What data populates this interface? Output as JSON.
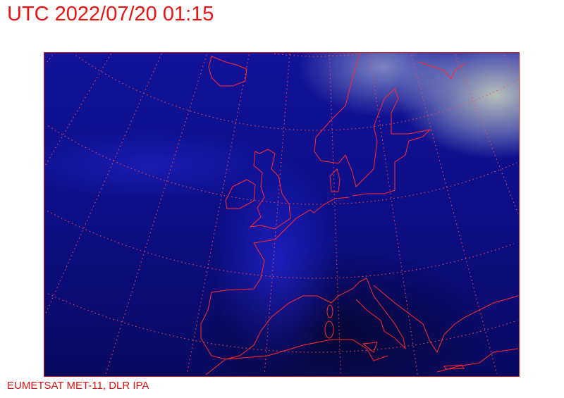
{
  "header": {
    "title": "UTC 2022/07/20 01:15"
  },
  "footer": {
    "credit": "EUMETSAT MET-11, DLR IPA"
  },
  "map": {
    "type": "satellite-image",
    "region": "Europe and North Atlantic",
    "overlays": [
      "coastlines",
      "lat-lon-graticule"
    ],
    "colors": {
      "coastline": "#ff2a2a",
      "graticule": "#ff4a4a",
      "ocean": "#0e0e88",
      "cloud": "#c8d2be",
      "text": "#ee1111"
    }
  }
}
